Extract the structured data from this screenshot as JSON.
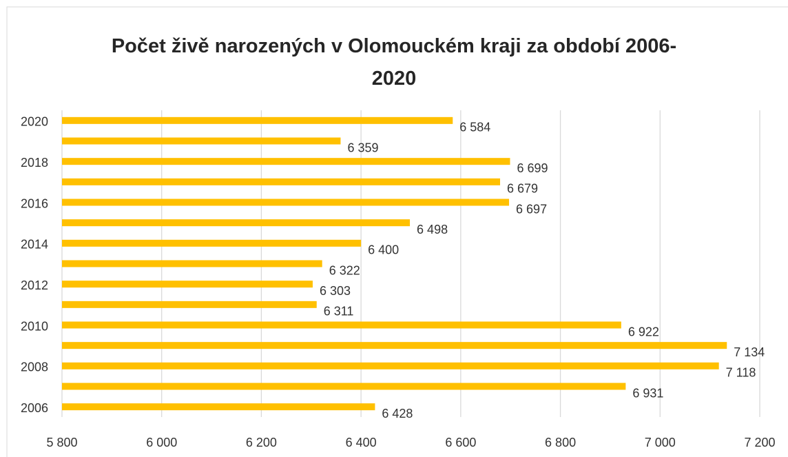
{
  "chart_data": {
    "type": "hbar",
    "title": "Počet  živě narozených v Olomouckém kraji za období 2006-2020",
    "categories": [
      "2006",
      null,
      "2008",
      null,
      "2010",
      null,
      "2012",
      null,
      "2014",
      null,
      "2016",
      null,
      "2018",
      null,
      "2020"
    ],
    "values": [
      6428,
      6931,
      7118,
      7134,
      6922,
      6311,
      6303,
      6322,
      6400,
      6498,
      6697,
      6679,
      6699,
      6359,
      6584
    ],
    "value_labels": [
      "6 428",
      "6 931",
      "7 118",
      "7 134",
      "6 922",
      "6 311",
      "6 303",
      "6 322",
      "6 400",
      "6 498",
      "6 697",
      "6 679",
      "6 699",
      "6 359",
      "6 584"
    ],
    "color": "#ffc000",
    "xlim": [
      5800,
      7200
    ],
    "xticks": [
      {
        "value": 5800,
        "label": "5 800"
      },
      {
        "value": 6000,
        "label": "6 000"
      },
      {
        "value": 6200,
        "label": "6 200"
      },
      {
        "value": 6400,
        "label": "6 400"
      },
      {
        "value": 6600,
        "label": "6 600"
      },
      {
        "value": 6800,
        "label": "6 800"
      },
      {
        "value": 7000,
        "label": "7 000"
      },
      {
        "value": 7200,
        "label": "7 200"
      }
    ],
    "grid": true
  }
}
